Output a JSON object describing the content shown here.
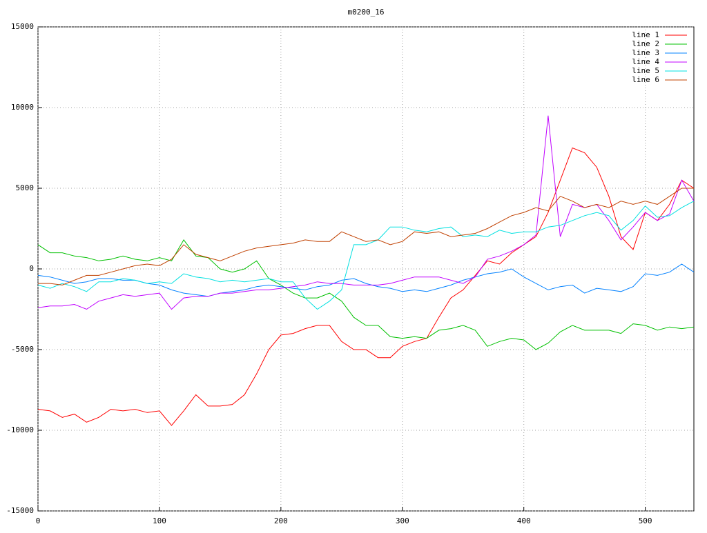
{
  "chart_data": {
    "type": "line",
    "title": "m0200_16",
    "x": [
      0,
      10,
      20,
      30,
      40,
      50,
      60,
      70,
      80,
      90,
      100,
      110,
      120,
      130,
      140,
      150,
      160,
      170,
      180,
      190,
      200,
      210,
      220,
      230,
      240,
      250,
      260,
      270,
      280,
      290,
      300,
      310,
      320,
      330,
      340,
      350,
      360,
      370,
      380,
      390,
      400,
      410,
      420,
      430,
      440,
      450,
      460,
      470,
      480,
      490,
      500,
      510,
      520,
      530,
      540
    ],
    "xlim": [
      0,
      540
    ],
    "xticks": [
      0,
      100,
      200,
      300,
      400,
      500
    ],
    "ylim": [
      -15000,
      15000
    ],
    "yticks": [
      -15000,
      -10000,
      -5000,
      0,
      5000,
      10000,
      15000
    ],
    "grid": true,
    "legend": "top-right",
    "series": [
      {
        "name": "line 1",
        "color": "#ff0000",
        "values": [
          -8700,
          -8800,
          -9200,
          -9000,
          -9500,
          -9200,
          -8700,
          -8800,
          -8700,
          -8900,
          -8800,
          -9700,
          -8800,
          -7800,
          -8500,
          -8500,
          -8400,
          -7800,
          -6500,
          -5000,
          -4100,
          -4000,
          -3700,
          -3500,
          -3500,
          -4500,
          -5000,
          -5000,
          -5500,
          -5500,
          -4800,
          -4500,
          -4300,
          -3000,
          -1800,
          -1300,
          -400,
          500,
          300,
          1000,
          1500,
          2000,
          3500,
          5500,
          7500,
          7200,
          6300,
          4500,
          2000,
          1200,
          3500,
          3000,
          4000,
          5500,
          5000
        ]
      },
      {
        "name": "line 2",
        "color": "#00c000",
        "values": [
          1500,
          1000,
          1000,
          800,
          700,
          500,
          600,
          800,
          600,
          500,
          700,
          500,
          1800,
          800,
          700,
          0,
          -200,
          0,
          500,
          -600,
          -1000,
          -1500,
          -1800,
          -1800,
          -1500,
          -2000,
          -3000,
          -3500,
          -3500,
          -4200,
          -4300,
          -4200,
          -4300,
          -3800,
          -3700,
          -3500,
          -3800,
          -4800,
          -4500,
          -4300,
          -4400,
          -5000,
          -4600,
          -3900,
          -3500,
          -3800,
          -3800,
          -3800,
          -4000,
          -3400,
          -3500,
          -3800,
          -3600,
          -3700,
          -3600
        ]
      },
      {
        "name": "line 3",
        "color": "#0080ff",
        "values": [
          -400,
          -500,
          -700,
          -900,
          -800,
          -600,
          -600,
          -700,
          -700,
          -900,
          -1000,
          -1300,
          -1500,
          -1600,
          -1700,
          -1500,
          -1400,
          -1300,
          -1100,
          -1000,
          -1100,
          -1200,
          -1300,
          -1100,
          -1000,
          -700,
          -600,
          -900,
          -1100,
          -1200,
          -1400,
          -1300,
          -1400,
          -1200,
          -1000,
          -700,
          -500,
          -300,
          -200,
          0,
          -500,
          -900,
          -1300,
          -1100,
          -1000,
          -1500,
          -1200,
          -1300,
          -1400,
          -1100,
          -300,
          -400,
          -200,
          300,
          -200
        ]
      },
      {
        "name": "line 4",
        "color": "#c000ff",
        "values": [
          -2400,
          -2300,
          -2300,
          -2200,
          -2500,
          -2000,
          -1800,
          -1600,
          -1700,
          -1600,
          -1500,
          -2500,
          -1800,
          -1700,
          -1700,
          -1500,
          -1500,
          -1400,
          -1300,
          -1300,
          -1200,
          -1100,
          -1000,
          -800,
          -900,
          -900,
          -1000,
          -1000,
          -1000,
          -900,
          -700,
          -500,
          -500,
          -500,
          -700,
          -900,
          -500,
          600,
          800,
          1100,
          1500,
          2100,
          9500,
          2000,
          4000,
          3800,
          4000,
          3000,
          1800,
          2600,
          3500,
          3000,
          3400,
          5500,
          4200
        ]
      },
      {
        "name": "line 5",
        "color": "#00e0e0",
        "values": [
          -1000,
          -1200,
          -900,
          -1100,
          -1400,
          -800,
          -800,
          -600,
          -700,
          -900,
          -800,
          -900,
          -300,
          -500,
          -600,
          -800,
          -700,
          -800,
          -700,
          -600,
          -800,
          -800,
          -1800,
          -2500,
          -2000,
          -1300,
          1500,
          1500,
          1800,
          2600,
          2600,
          2400,
          2300,
          2500,
          2600,
          2000,
          2100,
          2000,
          2400,
          2200,
          2300,
          2300,
          2600,
          2700,
          3000,
          3300,
          3500,
          3300,
          2400,
          3000,
          3900,
          3200,
          3300,
          3800,
          4200
        ]
      },
      {
        "name": "line 6",
        "color": "#c04000",
        "values": [
          -900,
          -900,
          -1000,
          -700,
          -400,
          -400,
          -200,
          0,
          200,
          300,
          200,
          600,
          1500,
          900,
          700,
          500,
          800,
          1100,
          1300,
          1400,
          1500,
          1600,
          1800,
          1700,
          1700,
          2300,
          2000,
          1700,
          1800,
          1500,
          1700,
          2300,
          2200,
          2300,
          2000,
          2100,
          2200,
          2500,
          2900,
          3300,
          3500,
          3800,
          3600,
          4500,
          4200,
          3800,
          4000,
          3800,
          4200,
          4000,
          4200,
          4000,
          4500,
          5000,
          5000
        ]
      }
    ]
  }
}
